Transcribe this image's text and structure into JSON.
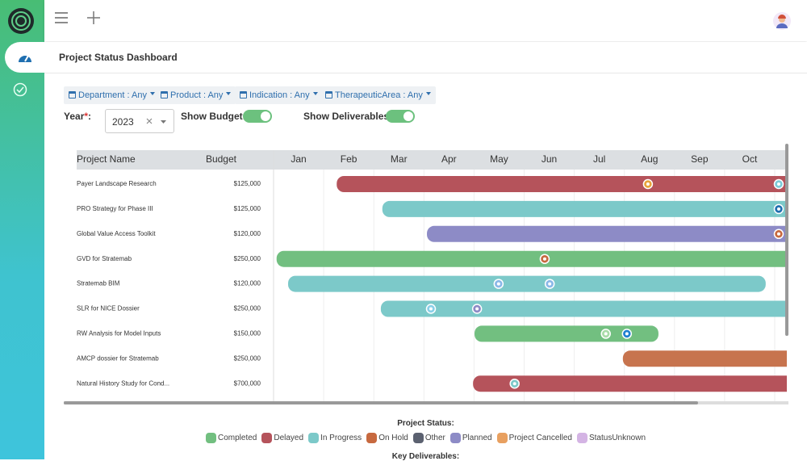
{
  "page_title": "Project Status Dashboard",
  "filters": [
    "Department : Any",
    "Product : Any",
    "Indication : Any",
    "TherapeuticArea : Any"
  ],
  "year_field": {
    "label": [
      "Year",
      "*",
      ":"
    ],
    "value": "2023"
  },
  "toggles": [
    {
      "label": "Show Budget:",
      "on": true
    },
    {
      "label": "Show Deliverables:",
      "on": true
    }
  ],
  "table": {
    "columns": [
      "Project Name",
      "Budget"
    ],
    "months": [
      "Jan",
      "Feb",
      "Mar",
      "Apr",
      "May",
      "Jun",
      "Jul",
      "Aug",
      "Sep",
      "Oct"
    ],
    "projects": [
      {
        "name": "Payer Landscape Research",
        "budget": "$125,000",
        "start": 1.26,
        "end": 11,
        "color": "#b5535b",
        "deliverables": [
          {
            "at": 7.47,
            "color": "#e8a33a"
          },
          {
            "at": 10.08,
            "color": "#7ccbd8"
          }
        ]
      },
      {
        "name": "PRO Strategy for Phase III",
        "budget": "$125,000",
        "start": 2.17,
        "end": 11,
        "color": "#7cc9c9",
        "deliverables": [
          {
            "at": 10.08,
            "color": "#1f6fb0"
          }
        ]
      },
      {
        "name": "Global Value Access Toolkit",
        "budget": "$120,000",
        "start": 3.06,
        "end": 11,
        "color": "#8d8bc6",
        "deliverables": [
          {
            "at": 10.08,
            "color": "#c7693f"
          }
        ]
      },
      {
        "name": "GVD for Stratemab",
        "budget": "$250,000",
        "start": 0.06,
        "end": 11,
        "color": "#72bf80",
        "deliverables": [
          {
            "at": 5.41,
            "color": "#c7693f"
          }
        ]
      },
      {
        "name": "Stratemab BIM",
        "budget": "$120,000",
        "start": 0.29,
        "end": 9.82,
        "color": "#7cc9c9",
        "deliverables": [
          {
            "at": 4.49,
            "color": "#8ab8e8"
          },
          {
            "at": 5.51,
            "color": "#8ab8e8"
          }
        ]
      },
      {
        "name": "SLR for NICE Dossier",
        "budget": "$250,000",
        "start": 2.14,
        "end": 11,
        "color": "#7cc9c9",
        "deliverables": [
          {
            "at": 3.14,
            "color": "#8ad0e8"
          },
          {
            "at": 4.06,
            "color": "#8d8bc6"
          }
        ]
      },
      {
        "name": "RW Analysis for Model Inputs",
        "budget": "$150,000",
        "start": 4.01,
        "end": 7.68,
        "color": "#72bf80",
        "deliverables": [
          {
            "at": 6.63,
            "color": "#a8dca8"
          },
          {
            "at": 7.05,
            "color": "#1f80d0"
          }
        ]
      },
      {
        "name": "AMCP dossier for Stratemab",
        "budget": "$250,000",
        "start": 6.97,
        "end": 11,
        "color": "#c7744e",
        "deliverables": []
      },
      {
        "name": "Natural History Study for Cond...",
        "budget": "$700,000",
        "start": 3.98,
        "end": 11,
        "color": "#b5535b",
        "deliverables": [
          {
            "at": 4.81,
            "color": "#7cc9c9"
          }
        ]
      }
    ]
  },
  "legend": {
    "title": "Project Status:",
    "items": [
      {
        "name": "Completed",
        "color": "#72bf80"
      },
      {
        "name": "Delayed",
        "color": "#b5535b"
      },
      {
        "name": "In Progress",
        "color": "#7cc9c9"
      },
      {
        "name": "On Hold",
        "color": "#c7693f"
      },
      {
        "name": "Other",
        "color": "#5b6170"
      },
      {
        "name": "Planned",
        "color": "#8d8bc6"
      },
      {
        "name": "Project Cancelled",
        "color": "#e8a060"
      },
      {
        "name": "StatusUnknown",
        "color": "#d4b4e4"
      }
    ]
  },
  "deliverables_title": "Key Deliverables:"
}
